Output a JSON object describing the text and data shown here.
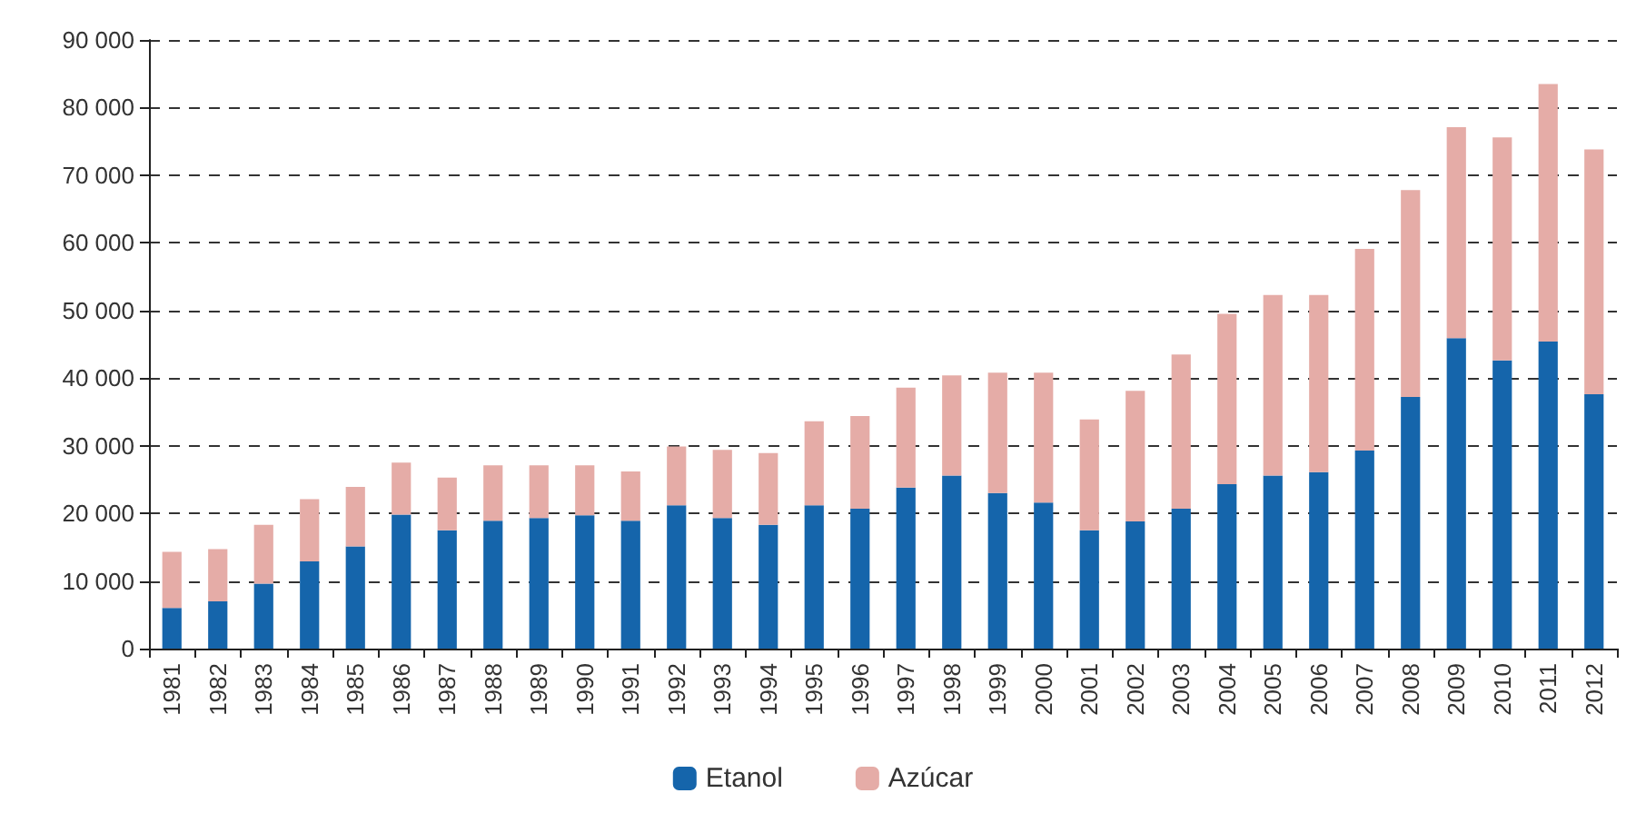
{
  "chart_data": {
    "type": "bar",
    "stacked": true,
    "categories": [
      "1981",
      "1982",
      "1983",
      "1984",
      "1985",
      "1986",
      "1987",
      "1988",
      "1989",
      "1990",
      "1991",
      "1992",
      "1993",
      "1994",
      "1995",
      "1996",
      "1997",
      "1998",
      "1999",
      "2000",
      "2001",
      "2002",
      "2003",
      "2004",
      "2005",
      "2006",
      "2007",
      "2008",
      "2009",
      "2010",
      "2011",
      "2012"
    ],
    "series": [
      {
        "name": "Etanol",
        "color": "#1565ab",
        "values": [
          6000,
          7000,
          9600,
          12900,
          15100,
          19800,
          17500,
          18900,
          19300,
          19700,
          18900,
          21200,
          19300,
          18300,
          21200,
          20700,
          23800,
          25600,
          23000,
          21600,
          17500,
          18800,
          20700,
          24300,
          25600,
          26100,
          29300,
          37200,
          45900,
          42600,
          45400,
          37600
        ]
      },
      {
        "name": "Azúcar",
        "color": "#e5aca7",
        "values": [
          8300,
          7700,
          8700,
          9200,
          8800,
          7700,
          7800,
          8200,
          7800,
          7400,
          7300,
          8700,
          10100,
          10600,
          12400,
          13700,
          14800,
          14800,
          17800,
          19200,
          16400,
          19300,
          22800,
          25200,
          26700,
          26200,
          29800,
          30600,
          31200,
          33000,
          38100,
          36200
        ]
      }
    ],
    "ylim": [
      0,
      90000
    ],
    "yticks": [
      0,
      {
        "value": 10000,
        "label": "10 000"
      },
      {
        "value": 20000,
        "label": "20 000"
      },
      {
        "value": 30000,
        "label": "30 000"
      },
      {
        "value": 40000,
        "label": "40 000"
      },
      {
        "value": 50000,
        "label": "50 000"
      },
      {
        "value": 60000,
        "label": "60 000"
      },
      {
        "value": 70000,
        "label": "70 000"
      },
      {
        "value": 80000,
        "label": "80 000"
      },
      {
        "value": 90000,
        "label": "90 000"
      }
    ],
    "grid": "y",
    "legend": "bottom"
  }
}
